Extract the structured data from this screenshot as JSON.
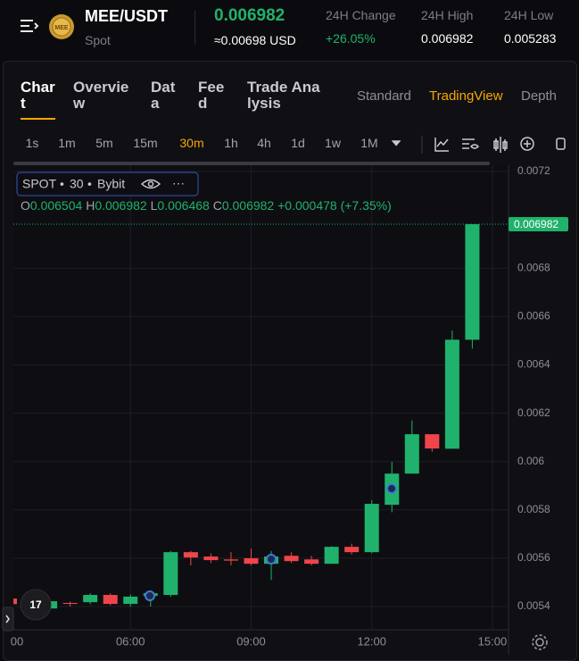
{
  "header": {
    "pair": "MEE/USDT",
    "market": "Spot",
    "price": "0.006982",
    "price_usd": "≈0.00698 USD",
    "stats": [
      {
        "label": "24H Change",
        "value": "+26.05%"
      },
      {
        "label": "24H High",
        "value": "0.006982"
      },
      {
        "label": "24H Low",
        "value": "0.005283"
      }
    ]
  },
  "tabs": [
    "Chart",
    "Overview",
    "Data",
    "Feed",
    "Trade Analysis"
  ],
  "chart_modes": [
    "Standard",
    "TradingView",
    "Depth"
  ],
  "intervals": [
    "1s",
    "1m",
    "5m",
    "15m",
    "30m",
    "1h",
    "4h",
    "1d",
    "1w",
    "1M"
  ],
  "legend": {
    "market": "SPOT",
    "interval": "30",
    "exchange": "Bybit",
    "open_label": "O",
    "high_label": "H",
    "low_label": "L",
    "close_label": "C",
    "change": "+0.000478",
    "change_pct": "(+7.35%)"
  },
  "chart_data": {
    "type": "candlestick",
    "categories": [
      "00",
      null,
      null,
      null,
      null,
      null,
      "06:00",
      null,
      null,
      null,
      null,
      null,
      "09:00",
      null,
      null,
      null,
      null,
      null,
      "12:00",
      null,
      null,
      null,
      null,
      null,
      "15:00"
    ],
    "open": [
      0.005433,
      0.005433,
      0.005392,
      0.005415,
      0.005418,
      0.005448,
      0.005411,
      0.005444,
      0.005448,
      0.005625,
      0.005607,
      0.005595,
      0.0056,
      0.005577,
      0.00561,
      0.005595,
      0.005577,
      0.005647,
      0.005625,
      0.005821,
      0.00595,
      0.006113,
      0.006053,
      0.006504,
      null
    ],
    "high": [
      0.005445,
      0.005445,
      0.005425,
      0.00542,
      0.005455,
      0.005455,
      0.00545,
      0.00546,
      0.00563,
      0.00563,
      0.00562,
      0.005625,
      0.00564,
      0.00563,
      0.005625,
      0.00561,
      0.00565,
      0.00566,
      0.00584,
      0.005999,
      0.00617,
      0.006113,
      0.006542,
      0.006982,
      null
    ],
    "low": [
      0.0054,
      0.005385,
      0.005385,
      0.0054,
      0.00541,
      0.005405,
      0.0054,
      0.0054,
      0.00544,
      0.00557,
      0.00558,
      0.00557,
      0.00557,
      0.00551,
      0.00558,
      0.00557,
      0.005577,
      0.005615,
      0.00562,
      0.00579,
      0.00595,
      0.00604,
      0.006053,
      0.006468,
      null
    ],
    "close": [
      0.00541,
      0.005392,
      0.005422,
      0.005411,
      0.005448,
      0.005411,
      0.005441,
      0.005455,
      0.005625,
      0.005603,
      0.005592,
      0.00559,
      0.005577,
      0.005607,
      0.005588,
      0.005577,
      0.005647,
      0.005625,
      0.005825,
      0.00595,
      0.006113,
      0.006054,
      0.006504,
      0.006982,
      null
    ],
    "up_color": "#20b26c",
    "down_color": "#ef454a",
    "ylim": [
      0.005304,
      0.007226
    ],
    "yticks": [
      0.0054,
      0.0056,
      0.0058,
      0.006,
      0.0062,
      0.0064,
      0.0066,
      0.0068,
      0.0072
    ],
    "grid": true
  }
}
